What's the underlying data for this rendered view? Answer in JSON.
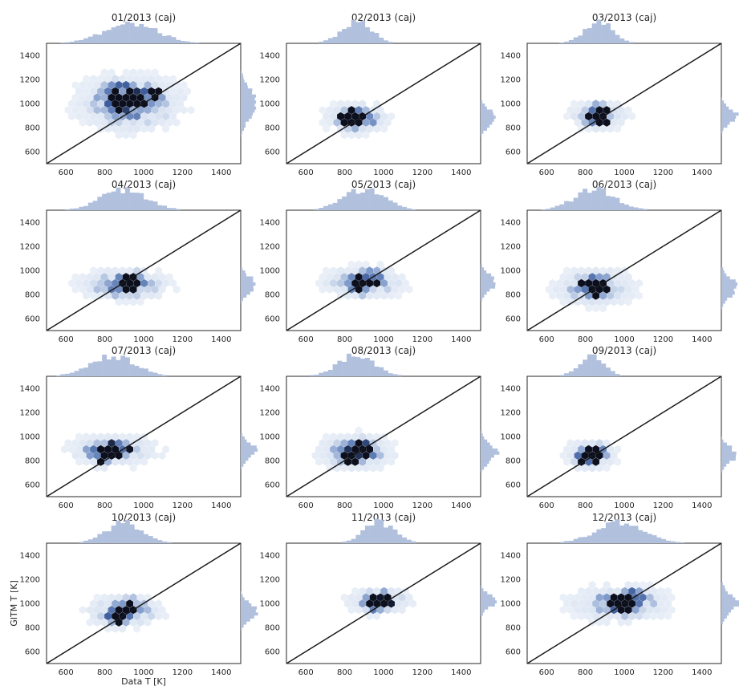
{
  "figure": {
    "xlabel": "Data T [K]",
    "ylabel": "GITM T [K]",
    "colors": {
      "hex_light": "#dde6f3",
      "hex_mid": "#7c98c9",
      "hex_dark": "#3c5c9c",
      "hex_max": "#0b0f1e",
      "marginal": "#b0c0dd",
      "diagonal": "#1a1a1a"
    }
  },
  "chart_data": [
    {
      "type": "hexbin",
      "title": "01/2013 (caj)",
      "xlim": [
        500,
        1500
      ],
      "ylim": [
        500,
        1500
      ],
      "xticks": [
        600,
        800,
        1000,
        1200,
        1400
      ],
      "yticks": [
        600,
        800,
        1000,
        1200,
        1400
      ],
      "diagonal": true,
      "center": [
        930,
        1000
      ],
      "spread": [
        130,
        110
      ],
      "dense": [
        [
          870,
          1030
        ],
        [
          900,
          1000
        ],
        [
          950,
          1000
        ],
        [
          1040,
          1080
        ],
        [
          1070,
          1080
        ],
        [
          880,
          1150
        ],
        [
          800,
          1100
        ],
        [
          960,
          1070
        ]
      ]
    },
    {
      "type": "hexbin",
      "title": "02/2013 (caj)",
      "xlim": [
        500,
        1500
      ],
      "ylim": [
        500,
        1500
      ],
      "xticks": [
        600,
        800,
        1000,
        1200,
        1400
      ],
      "yticks": [
        600,
        800,
        1000,
        1200,
        1400
      ],
      "diagonal": true,
      "center": [
        860,
        880
      ],
      "spread": [
        75,
        60
      ],
      "dense": [
        [
          830,
          860
        ],
        [
          870,
          900
        ],
        [
          900,
          880
        ],
        [
          840,
          820
        ],
        [
          800,
          900
        ]
      ]
    },
    {
      "type": "hexbin",
      "title": "03/2013 (caj)",
      "xlim": [
        500,
        1500
      ],
      "ylim": [
        500,
        1500
      ],
      "xticks": [
        600,
        800,
        1000,
        1200,
        1400
      ],
      "yticks": [
        600,
        800,
        1000,
        1200,
        1400
      ],
      "diagonal": true,
      "center": [
        870,
        900
      ],
      "spread": [
        70,
        55
      ],
      "dense": [
        [
          850,
          900
        ],
        [
          880,
          870
        ],
        [
          860,
          940
        ]
      ]
    },
    {
      "type": "hexbin",
      "title": "04/2013 (caj)",
      "xlim": [
        500,
        1500
      ],
      "ylim": [
        500,
        1500
      ],
      "xticks": [
        600,
        800,
        1000,
        1200,
        1400
      ],
      "yticks": [
        600,
        800,
        1000,
        1200,
        1400
      ],
      "diagonal": true,
      "center": [
        900,
        880
      ],
      "spread": [
        110,
        60
      ],
      "dense": [
        [
          900,
          830
        ],
        [
          930,
          880
        ],
        [
          950,
          940
        ]
      ]
    },
    {
      "type": "hexbin",
      "title": "05/2013 (caj)",
      "xlim": [
        500,
        1500
      ],
      "ylim": [
        500,
        1500
      ],
      "xticks": [
        600,
        800,
        1000,
        1200,
        1400
      ],
      "yticks": [
        600,
        800,
        1000,
        1200,
        1400
      ],
      "diagonal": true,
      "center": [
        900,
        900
      ],
      "spread": [
        100,
        60
      ],
      "dense": [
        [
          910,
          920
        ],
        [
          870,
          880
        ],
        [
          960,
          960
        ],
        [
          880,
          860
        ]
      ]
    },
    {
      "type": "hexbin",
      "title": "06/2013 (caj)",
      "xlim": [
        500,
        1500
      ],
      "ylim": [
        500,
        1500
      ],
      "xticks": [
        600,
        800,
        1000,
        1200,
        1400
      ],
      "yticks": [
        600,
        800,
        1000,
        1200,
        1400
      ],
      "diagonal": true,
      "center": [
        850,
        860
      ],
      "spread": [
        100,
        70
      ],
      "dense": [
        [
          870,
          880
        ],
        [
          830,
          840
        ],
        [
          800,
          900
        ],
        [
          850,
          800
        ]
      ]
    },
    {
      "type": "hexbin",
      "title": "07/2013 (caj)",
      "xlim": [
        500,
        1500
      ],
      "ylim": [
        500,
        1500
      ],
      "xticks": [
        600,
        800,
        1000,
        1200,
        1400
      ],
      "yticks": [
        600,
        800,
        1000,
        1200,
        1400
      ],
      "diagonal": true,
      "center": [
        840,
        880
      ],
      "spread": [
        110,
        60
      ],
      "dense": [
        [
          840,
          900
        ],
        [
          800,
          820
        ],
        [
          880,
          880
        ],
        [
          780,
          850
        ]
      ]
    },
    {
      "type": "hexbin",
      "title": "08/2013 (caj)",
      "xlim": [
        500,
        1500
      ],
      "ylim": [
        500,
        1500
      ],
      "xticks": [
        600,
        800,
        1000,
        1200,
        1400
      ],
      "yticks": [
        600,
        800,
        1000,
        1200,
        1400
      ],
      "diagonal": true,
      "center": [
        860,
        870
      ],
      "spread": [
        90,
        70
      ],
      "dense": [
        [
          820,
          870
        ],
        [
          840,
          800
        ],
        [
          880,
          910
        ],
        [
          900,
          860
        ]
      ]
    },
    {
      "type": "hexbin",
      "title": "09/2013 (caj)",
      "xlim": [
        500,
        1500
      ],
      "ylim": [
        500,
        1500
      ],
      "xticks": [
        600,
        800,
        1000,
        1200,
        1400
      ],
      "yticks": [
        600,
        800,
        1000,
        1200,
        1400
      ],
      "diagonal": true,
      "center": [
        830,
        850
      ],
      "spread": [
        60,
        55
      ],
      "dense": [
        [
          820,
          830
        ],
        [
          850,
          880
        ],
        [
          800,
          800
        ]
      ]
    },
    {
      "type": "hexbin",
      "title": "10/2013 (caj)",
      "xlim": [
        500,
        1500
      ],
      "ylim": [
        500,
        1500
      ],
      "xticks": [
        600,
        800,
        1000,
        1200,
        1400
      ],
      "yticks": [
        600,
        800,
        1000,
        1200,
        1400
      ],
      "diagonal": true,
      "center": [
        900,
        930
      ],
      "spread": [
        90,
        60
      ],
      "dense": [
        [
          880,
          880
        ],
        [
          920,
          950
        ],
        [
          940,
          1000
        ],
        [
          870,
          920
        ]
      ]
    },
    {
      "type": "hexbin",
      "title": "11/2013 (caj)",
      "xlim": [
        500,
        1500
      ],
      "ylim": [
        500,
        1500
      ],
      "xticks": [
        600,
        800,
        1000,
        1200,
        1400
      ],
      "yticks": [
        600,
        800,
        1000,
        1200,
        1400
      ],
      "diagonal": true,
      "center": [
        980,
        1020
      ],
      "spread": [
        75,
        50
      ],
      "dense": [
        [
          960,
          1010
        ],
        [
          1000,
          1040
        ],
        [
          950,
          980
        ]
      ]
    },
    {
      "type": "hexbin",
      "title": "12/2013 (caj)",
      "xlim": [
        500,
        1500
      ],
      "ylim": [
        500,
        1500
      ],
      "xticks": [
        600,
        800,
        1000,
        1200,
        1400
      ],
      "yticks": [
        600,
        800,
        1000,
        1200,
        1400
      ],
      "diagonal": true,
      "center": [
        980,
        1000
      ],
      "spread": [
        120,
        70
      ],
      "dense": [
        [
          950,
          1030
        ],
        [
          990,
          1010
        ],
        [
          1000,
          970
        ],
        [
          1050,
          1060
        ]
      ]
    }
  ]
}
